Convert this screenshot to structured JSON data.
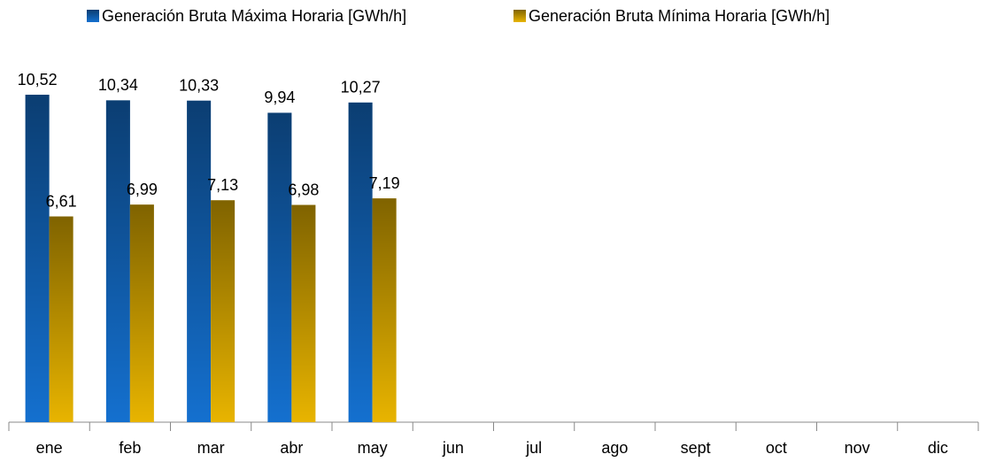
{
  "chart_data": {
    "type": "bar",
    "categories": [
      "ene",
      "feb",
      "mar",
      "abr",
      "may",
      "jun",
      "jul",
      "ago",
      "sept",
      "oct",
      "nov",
      "dic"
    ],
    "series": [
      {
        "name": "Generación Bruta Máxima Horaria [GWh/h]",
        "color": "#1470cf",
        "values": [
          10.52,
          10.34,
          10.33,
          9.94,
          10.27,
          null,
          null,
          null,
          null,
          null,
          null,
          null
        ],
        "value_labels": [
          "10,52",
          "10,34",
          "10,33",
          "9,94",
          "10,27",
          null,
          null,
          null,
          null,
          null,
          null,
          null
        ]
      },
      {
        "name": "Generación Bruta Mínima Horaria [GWh/h]",
        "color": "#e8b400",
        "values": [
          6.61,
          6.99,
          7.13,
          6.98,
          7.19,
          null,
          null,
          null,
          null,
          null,
          null,
          null
        ],
        "value_labels": [
          "6,61",
          "6,99",
          "7,13",
          "6,98",
          "7,19",
          null,
          null,
          null,
          null,
          null,
          null,
          null
        ]
      }
    ],
    "ylim": [
      0,
      12
    ],
    "legend": "top"
  }
}
